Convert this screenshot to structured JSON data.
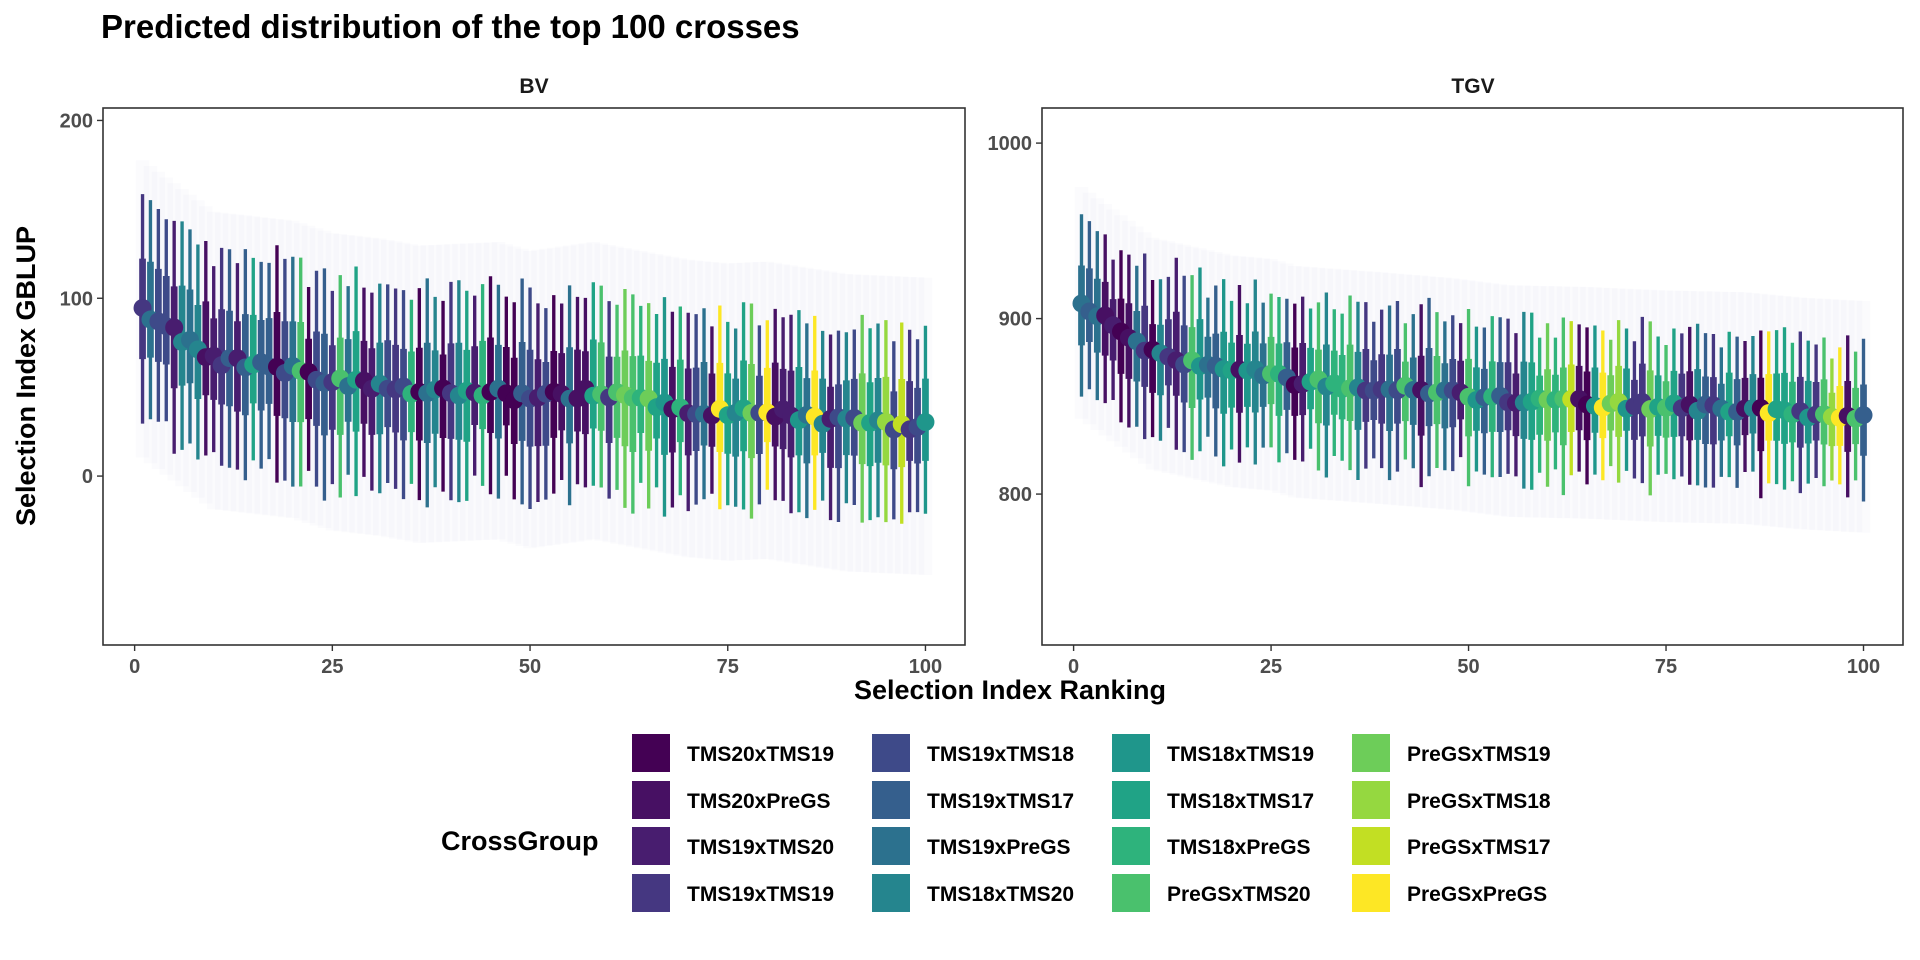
{
  "chart_data": {
    "type": "scatter",
    "title": "Predicted distribution of the top 100 crosses",
    "xlabel": "Selection Index Ranking",
    "ylabel": "Selection Index GBLUP",
    "legend_title": "CrossGroup",
    "legend_position": "bottom",
    "grid": false,
    "groups": [
      {
        "name": "TMS20xTMS19",
        "color": "#440154"
      },
      {
        "name": "TMS20xPreGS",
        "color": "#471063"
      },
      {
        "name": "TMS19xTMS20",
        "color": "#481D6F"
      },
      {
        "name": "TMS19xTMS19",
        "color": "#453781"
      },
      {
        "name": "TMS19xTMS18",
        "color": "#3E4A89"
      },
      {
        "name": "TMS19xTMS17",
        "color": "#355F8D"
      },
      {
        "name": "TMS19xPreGS",
        "color": "#2C718E"
      },
      {
        "name": "TMS18xTMS20",
        "color": "#25858E"
      },
      {
        "name": "TMS18xTMS19",
        "color": "#1F968B"
      },
      {
        "name": "TMS18xTMS17",
        "color": "#20A386"
      },
      {
        "name": "TMS18xPreGS",
        "color": "#2EB37C"
      },
      {
        "name": "PreGSxTMS20",
        "color": "#4AC16D"
      },
      {
        "name": "PreGSxTMS19",
        "color": "#6DCD59"
      },
      {
        "name": "PreGSxTMS18",
        "color": "#95D840"
      },
      {
        "name": "PreGSxTMS17",
        "color": "#C2DF23"
      },
      {
        "name": "PreGSxPreGS",
        "color": "#FDE725"
      }
    ],
    "x_ticks": [
      0,
      25,
      50,
      75,
      100
    ],
    "panels": [
      {
        "label": "BV",
        "xlim": [
          -4,
          105
        ],
        "ylim": [
          -95,
          207
        ],
        "y_ticks": [
          0,
          100,
          200
        ],
        "mean_points": [
          {
            "rank": 1,
            "mean": 94
          },
          {
            "rank": 10,
            "mean": 65
          },
          {
            "rank": 20,
            "mean": 60
          },
          {
            "rank": 25,
            "mean": 53
          },
          {
            "rank": 31,
            "mean": 50
          },
          {
            "rank": 36,
            "mean": 46
          },
          {
            "rank": 46,
            "mean": 48
          },
          {
            "rank": 50,
            "mean": 43
          },
          {
            "rank": 58,
            "mean": 48
          },
          {
            "rank": 70,
            "mean": 38
          },
          {
            "rank": 75,
            "mean": 36
          },
          {
            "rank": 80,
            "mean": 37
          },
          {
            "rank": 90,
            "mean": 30
          },
          {
            "rank": 100,
            "mean": 28
          }
        ]
      },
      {
        "label": "TGV",
        "xlim": [
          -4,
          105
        ],
        "ylim": [
          714,
          1020
        ],
        "y_ticks": [
          800,
          900,
          1000
        ],
        "mean_points": [
          {
            "rank": 1,
            "mean": 909
          },
          {
            "rank": 10,
            "mean": 880
          },
          {
            "rank": 20,
            "mean": 870
          },
          {
            "rank": 25,
            "mean": 868
          },
          {
            "rank": 28,
            "mean": 864
          },
          {
            "rank": 40,
            "mean": 860
          },
          {
            "rank": 48,
            "mean": 857
          },
          {
            "rank": 55,
            "mean": 853
          },
          {
            "rank": 65,
            "mean": 852
          },
          {
            "rank": 75,
            "mean": 850
          },
          {
            "rank": 85,
            "mean": 849
          },
          {
            "rank": 92,
            "mean": 846
          },
          {
            "rank": 100,
            "mean": 844
          }
        ]
      }
    ]
  }
}
